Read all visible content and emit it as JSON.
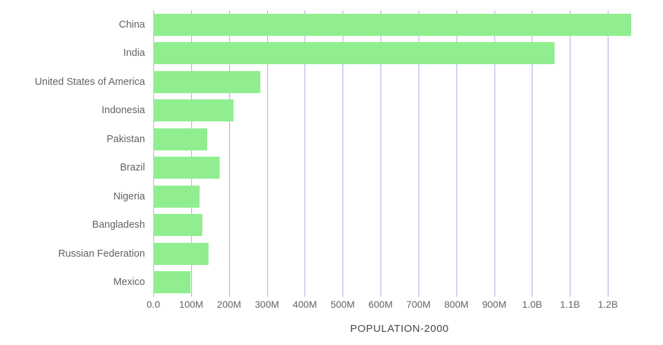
{
  "colors": {
    "bar": "#90ee90",
    "grid": "#8f8de4",
    "label": "#636363",
    "title": "#454545"
  },
  "chart_data": {
    "type": "bar",
    "orientation": "horizontal",
    "title": "POPULATION-2000",
    "categories": [
      "China",
      "India",
      "United States of America",
      "Indonesia",
      "Pakistan",
      "Brazil",
      "Nigeria",
      "Bangladesh",
      "Russian Federation",
      "Mexico"
    ],
    "values_millions": [
      1262.6,
      1059.6,
      282.2,
      211.5,
      142.3,
      174.8,
      122.3,
      129.2,
      146.6,
      97.9
    ],
    "x_ticks": [
      "0.0",
      "100M",
      "200M",
      "300M",
      "400M",
      "500M",
      "600M",
      "700M",
      "800M",
      "900M",
      "1.0B",
      "1.1B",
      "1.2B"
    ],
    "x_tick_values_millions": [
      0,
      100,
      200,
      300,
      400,
      500,
      600,
      700,
      800,
      900,
      1000,
      1100,
      1200
    ],
    "xlim_millions": [
      0,
      1300
    ],
    "grid": true,
    "legend_position": "none",
    "xlabel": "POPULATION-2000",
    "ylabel": ""
  }
}
